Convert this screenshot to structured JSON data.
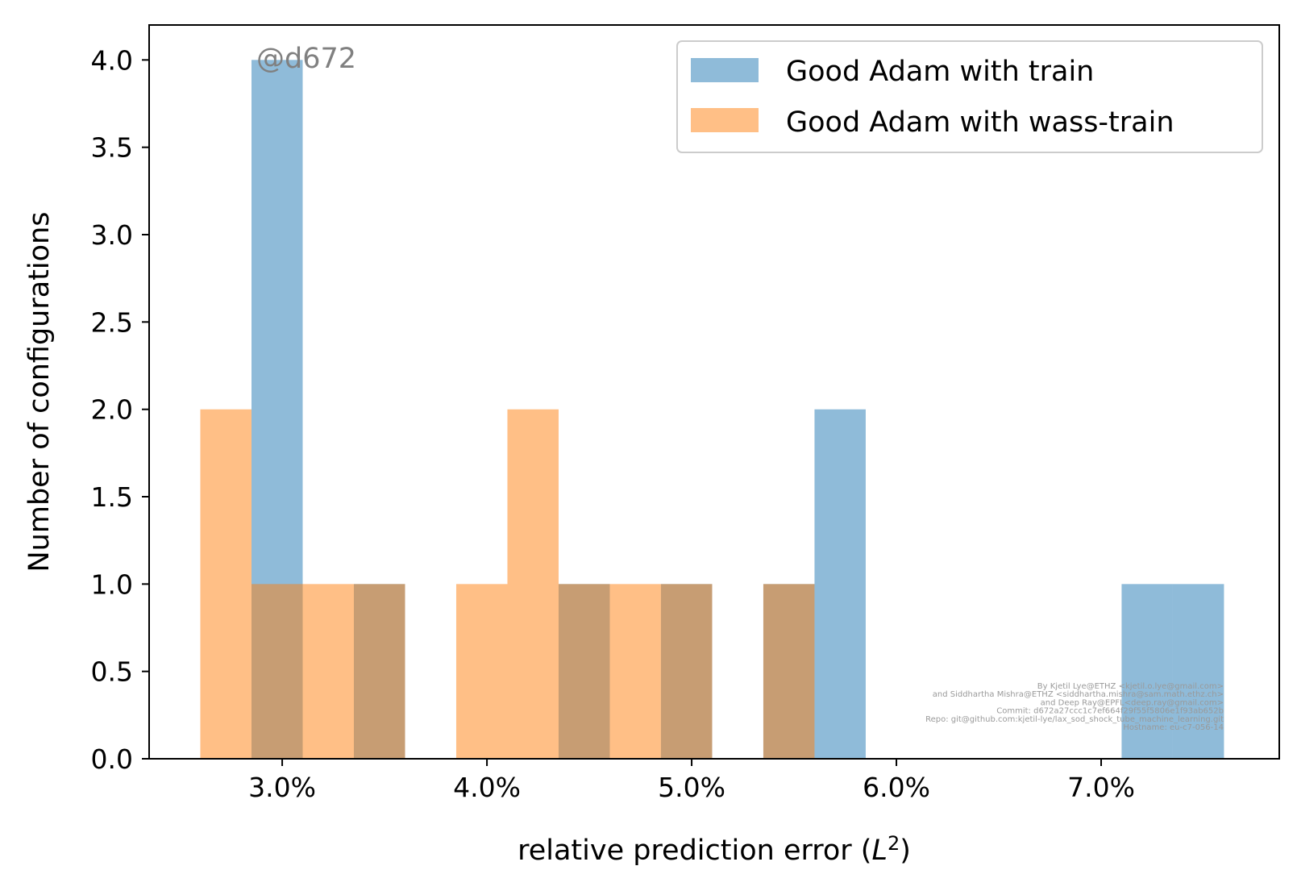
{
  "chart_data": {
    "type": "bar",
    "xlabel_main": "relative prediction error (",
    "xlabel_math": "L",
    "xlabel_sup": "2",
    "xlabel_close": ")",
    "ylabel": "Number of configurations",
    "xlim": [
      2.35,
      7.87
    ],
    "ylim": [
      0,
      4.2
    ],
    "xticks": [
      {
        "value": 3.0,
        "label": "3.0%"
      },
      {
        "value": 4.0,
        "label": "4.0%"
      },
      {
        "value": 5.0,
        "label": "5.0%"
      },
      {
        "value": 6.0,
        "label": "6.0%"
      },
      {
        "value": 7.0,
        "label": "7.0%"
      }
    ],
    "yticks": [
      {
        "value": 0.0,
        "label": "0.0"
      },
      {
        "value": 0.5,
        "label": "0.5"
      },
      {
        "value": 1.0,
        "label": "1.0"
      },
      {
        "value": 1.5,
        "label": "1.5"
      },
      {
        "value": 2.0,
        "label": "2.0"
      },
      {
        "value": 2.5,
        "label": "2.5"
      },
      {
        "value": 3.0,
        "label": "3.0"
      },
      {
        "value": 3.5,
        "label": "3.5"
      },
      {
        "value": 4.0,
        "label": "4.0"
      }
    ],
    "bin_edges": [
      2.6,
      2.85,
      3.1,
      3.35,
      3.6,
      3.85,
      4.1,
      4.35,
      4.6,
      4.85,
      5.1,
      5.35,
      5.6,
      5.85,
      6.1,
      6.35,
      6.6,
      6.85,
      7.1,
      7.35,
      7.6
    ],
    "series": [
      {
        "name": "Good Adam with train",
        "color": "#1f77b4",
        "opacity": 0.5,
        "counts": [
          0,
          4,
          0,
          1,
          0,
          0,
          0,
          1,
          0,
          1,
          0,
          1,
          2,
          0,
          0,
          0,
          0,
          0,
          1,
          1
        ]
      },
      {
        "name": "Good Adam with wass-train",
        "color": "#ff7f0e",
        "opacity": 0.5,
        "counts": [
          2,
          1,
          1,
          1,
          0,
          1,
          2,
          1,
          1,
          1,
          0,
          1,
          0,
          0,
          0,
          0,
          0,
          0,
          0,
          0
        ]
      }
    ],
    "legend_position": "upper right",
    "watermark": "@d672",
    "credits": [
      "By Kjetil Lye@ETHZ <kjetil.o.lye@gmail.com>",
      "and Siddhartha Mishra@ETHZ <siddhartha.mishra@sam.math.ethz.ch>",
      "and Deep Ray@EPFL<deep.ray@gmail.com>",
      "Commit: d672a27ccc1c7ef664f29f55f5806e1f93ab652b",
      "Repo: git@github.com:kjetil-lye/lax_sod_shock_tube_machine_learning.git",
      "Hostname: eu-c7-056-14"
    ]
  }
}
